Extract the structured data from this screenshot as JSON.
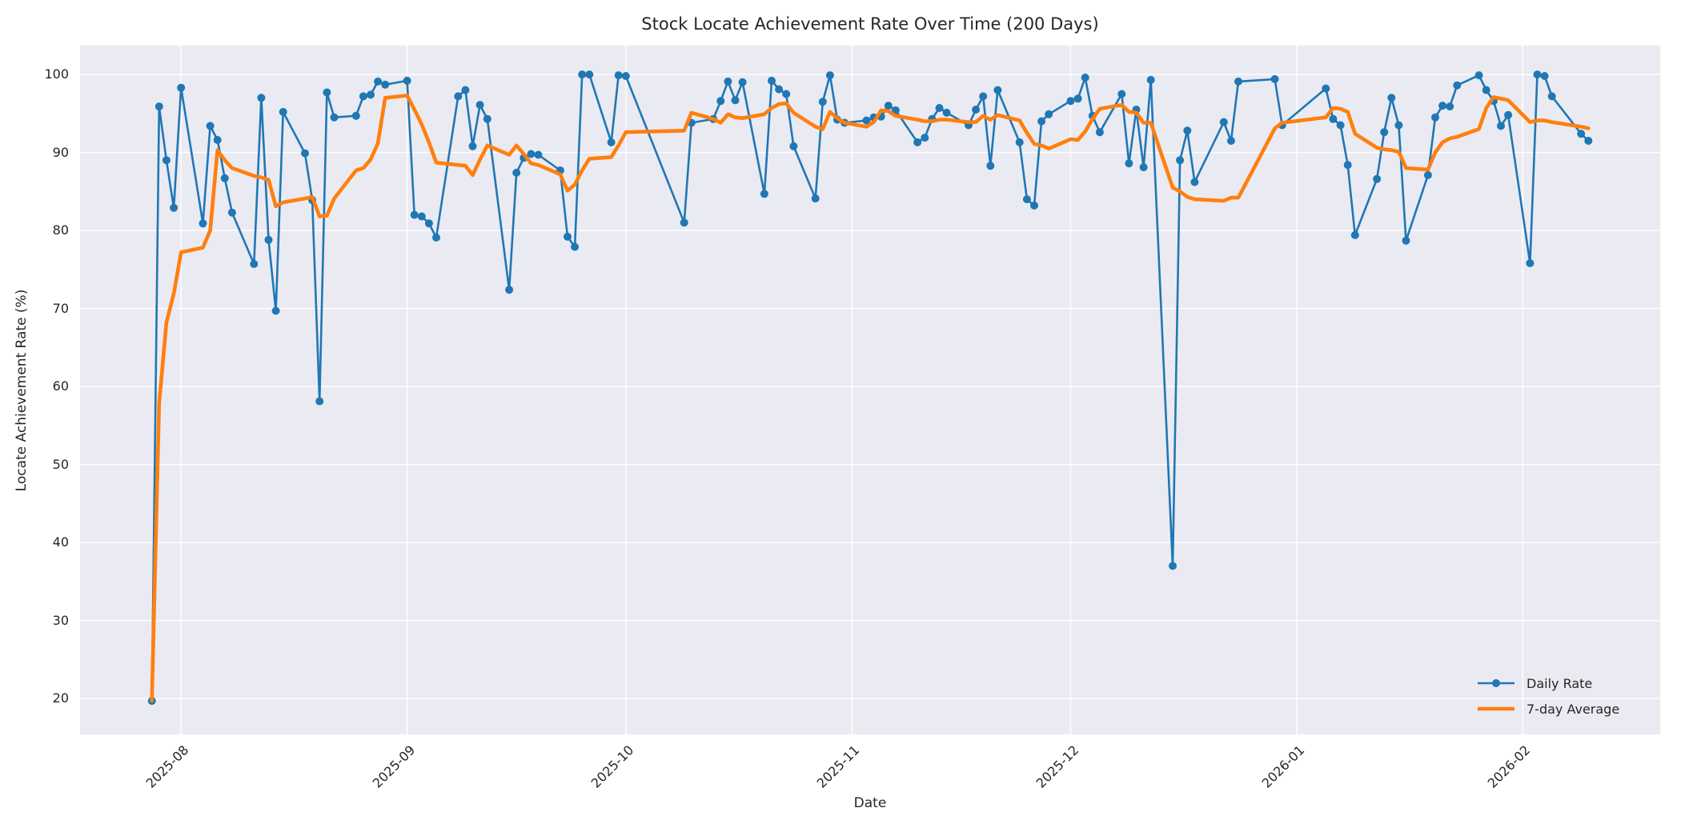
{
  "chart_data": {
    "type": "line",
    "title": "Stock Locate Achievement Rate Over Time (200 Days)",
    "xlabel": "Date",
    "ylabel": "Locate Achievement Rate (%)",
    "background_color": "#eaeaf2",
    "grid": true,
    "grid_color": "#ffffff",
    "legend_position": "lower right",
    "ylim": [
      15.4,
      103.7
    ],
    "xlim_days": [
      -9.85,
      206.85
    ],
    "x_start_date": "2025-07-28",
    "yticks": [
      20,
      30,
      40,
      50,
      60,
      70,
      80,
      90,
      100
    ],
    "x_ticks": [
      {
        "label": "2025-08",
        "date": "2025-08-01"
      },
      {
        "label": "2025-09",
        "date": "2025-09-01"
      },
      {
        "label": "2025-10",
        "date": "2025-10-01"
      },
      {
        "label": "2025-11",
        "date": "2025-11-01"
      },
      {
        "label": "2025-12",
        "date": "2025-12-01"
      },
      {
        "label": "2026-01",
        "date": "2026-01-01"
      },
      {
        "label": "2026-02",
        "date": "2026-02-01"
      }
    ],
    "dates": [
      "2025-07-28",
      "2025-07-29",
      "2025-07-30",
      "2025-07-31",
      "2025-08-01",
      "2025-08-04",
      "2025-08-05",
      "2025-08-06",
      "2025-08-07",
      "2025-08-08",
      "2025-08-11",
      "2025-08-12",
      "2025-08-13",
      "2025-08-14",
      "2025-08-15",
      "2025-08-18",
      "2025-08-19",
      "2025-08-20",
      "2025-08-21",
      "2025-08-22",
      "2025-08-25",
      "2025-08-26",
      "2025-08-27",
      "2025-08-28",
      "2025-08-29",
      "2025-09-01",
      "2025-09-02",
      "2025-09-03",
      "2025-09-04",
      "2025-09-05",
      "2025-09-08",
      "2025-09-09",
      "2025-09-10",
      "2025-09-11",
      "2025-09-12",
      "2025-09-15",
      "2025-09-16",
      "2025-09-17",
      "2025-09-18",
      "2025-09-19",
      "2025-09-22",
      "2025-09-23",
      "2025-09-24",
      "2025-09-25",
      "2025-09-26",
      "2025-09-29",
      "2025-09-30",
      "2025-10-01",
      "2025-10-09",
      "2025-10-10",
      "2025-10-13",
      "2025-10-14",
      "2025-10-15",
      "2025-10-16",
      "2025-10-17",
      "2025-10-20",
      "2025-10-21",
      "2025-10-22",
      "2025-10-23",
      "2025-10-24",
      "2025-10-27",
      "2025-10-28",
      "2025-10-29",
      "2025-10-30",
      "2025-10-31",
      "2025-11-03",
      "2025-11-04",
      "2025-11-05",
      "2025-11-06",
      "2025-11-07",
      "2025-11-10",
      "2025-11-11",
      "2025-11-12",
      "2025-11-13",
      "2025-11-14",
      "2025-11-17",
      "2025-11-18",
      "2025-11-19",
      "2025-11-20",
      "2025-11-21",
      "2025-11-24",
      "2025-11-25",
      "2025-11-26",
      "2025-11-27",
      "2025-11-28",
      "2025-12-01",
      "2025-12-02",
      "2025-12-03",
      "2025-12-04",
      "2025-12-05",
      "2025-12-08",
      "2025-12-09",
      "2025-12-10",
      "2025-12-11",
      "2025-12-12",
      "2025-12-15",
      "2025-12-16",
      "2025-12-17",
      "2025-12-18",
      "2025-12-22",
      "2025-12-23",
      "2025-12-24",
      "2025-12-29",
      "2025-12-30",
      "2026-01-05",
      "2026-01-06",
      "2026-01-07",
      "2026-01-08",
      "2026-01-09",
      "2026-01-12",
      "2026-01-13",
      "2026-01-14",
      "2026-01-15",
      "2026-01-16",
      "2026-01-19",
      "2026-01-20",
      "2026-01-21",
      "2026-01-22",
      "2026-01-23",
      "2026-01-26",
      "2026-01-27",
      "2026-01-28",
      "2026-01-29",
      "2026-01-30",
      "2026-02-02",
      "2026-02-03",
      "2026-02-04",
      "2026-02-05",
      "2026-02-09",
      "2026-02-10"
    ],
    "series": [
      {
        "name": "Daily Rate",
        "color": "#1f77b4",
        "line_width": 2.6,
        "marker": true,
        "marker_radius": 5,
        "values": [
          19.7,
          95.9,
          89.0,
          82.9,
          98.3,
          80.9,
          93.4,
          91.6,
          86.7,
          82.3,
          75.7,
          97.0,
          78.8,
          69.7,
          95.2,
          89.9,
          83.9,
          58.1,
          97.7,
          94.5,
          94.7,
          97.2,
          97.4,
          99.1,
          98.7,
          99.2,
          82.0,
          81.8,
          80.9,
          79.1,
          97.2,
          98.0,
          90.8,
          96.1,
          94.3,
          72.4,
          87.4,
          89.3,
          89.8,
          89.7,
          87.7,
          79.2,
          77.9,
          100.0,
          100.0,
          91.3,
          99.9,
          99.8,
          81.0,
          93.8,
          94.3,
          96.6,
          99.1,
          96.7,
          99.0,
          84.7,
          99.2,
          98.1,
          97.5,
          90.8,
          84.1,
          96.5,
          99.9,
          94.2,
          93.8,
          94.1,
          94.5,
          94.6,
          96.0,
          95.4,
          91.3,
          91.9,
          94.3,
          95.7,
          95.1,
          93.5,
          95.5,
          97.2,
          88.3,
          98.0,
          91.3,
          84.0,
          83.2,
          94.0,
          94.9,
          96.6,
          96.9,
          99.6,
          94.7,
          92.6,
          97.5,
          88.6,
          95.5,
          88.1,
          99.3,
          37.0,
          89.0,
          92.8,
          86.2,
          93.9,
          91.5,
          99.1,
          99.4,
          93.5,
          98.2,
          94.3,
          93.5,
          88.4,
          79.4,
          86.6,
          92.6,
          97.0,
          93.5,
          78.7,
          87.1,
          94.5,
          96.0,
          95.9,
          98.6,
          99.9,
          98.0,
          96.6,
          93.4,
          94.8,
          75.8,
          100.0,
          99.8,
          97.2,
          92.4,
          91.5
        ]
      },
      {
        "name": "7-day Average",
        "color": "#ff7f0e",
        "line_width": 4.6,
        "marker": false,
        "marker_radius": 0,
        "values": [
          19.7,
          57.8,
          68.2,
          71.9,
          77.2,
          77.8,
          80.0,
          90.3,
          89.0,
          88.0,
          87.0,
          86.8,
          86.5,
          83.1,
          83.6,
          84.1,
          84.3,
          81.8,
          81.9,
          84.1,
          87.7,
          88.0,
          89.1,
          91.2,
          97.0,
          97.3,
          95.5,
          93.6,
          91.3,
          88.7,
          88.4,
          88.3,
          87.1,
          89.1,
          90.9,
          89.7,
          90.9,
          89.8,
          88.6,
          88.4,
          87.2,
          85.1,
          85.9,
          87.7,
          89.2,
          89.4,
          90.9,
          92.6,
          92.8,
          95.1,
          94.3,
          93.8,
          94.9,
          94.5,
          94.4,
          94.9,
          95.7,
          96.2,
          96.3,
          95.1,
          93.3,
          93.0,
          95.2,
          94.4,
          93.8,
          93.3,
          93.9,
          95.4,
          95.3,
          94.7,
          94.2,
          94.0,
          94.0,
          94.2,
          94.2,
          93.9,
          93.9,
          94.7,
          94.2,
          94.8,
          94.1,
          92.5,
          91.1,
          90.9,
          90.5,
          91.7,
          91.6,
          92.7,
          94.3,
          95.6,
          96.1,
          95.2,
          95.1,
          93.8,
          93.8,
          85.5,
          85.0,
          84.3,
          84.0,
          83.8,
          84.2,
          84.2,
          93.1,
          93.8,
          94.5,
          95.7,
          95.6,
          95.2,
          92.4,
          90.6,
          90.4,
          90.3,
          90.1,
          88.0,
          87.8,
          90.0,
          91.3,
          91.8,
          92.0,
          93.0,
          95.7,
          97.1,
          96.9,
          96.7,
          93.9,
          94.1,
          94.1,
          93.9,
          93.3,
          93.1
        ]
      }
    ]
  }
}
